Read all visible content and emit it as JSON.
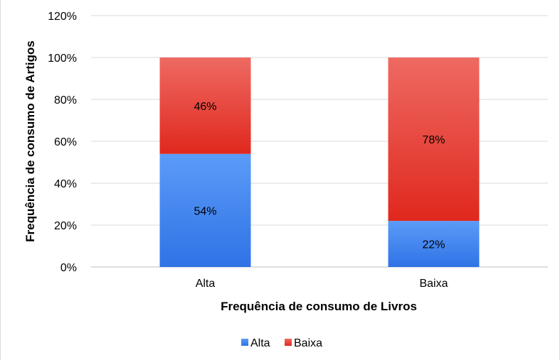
{
  "chart_data": {
    "type": "bar",
    "stacked": true,
    "title": "",
    "xlabel": "Frequência de consumo de Livros",
    "ylabel": "Frequência de consumo de Artigos",
    "categories": [
      "Alta",
      "Baixa"
    ],
    "series": [
      {
        "name": "Alta",
        "values": [
          54,
          22
        ],
        "labels": [
          "54%",
          "22%"
        ],
        "color_top": "#5b9bf8",
        "color_bottom": "#2f73e6"
      },
      {
        "name": "Baixa",
        "values": [
          46,
          78
        ],
        "labels": [
          "46%",
          "78%"
        ],
        "color_top": "#ee6a62",
        "color_bottom": "#e0281e"
      }
    ],
    "ylim": [
      0,
      120
    ],
    "yticks": [
      0,
      20,
      40,
      60,
      80,
      100,
      120
    ],
    "ytick_labels": [
      "0%",
      "20%",
      "40%",
      "60%",
      "80%",
      "100%",
      "120%"
    ],
    "grid": true,
    "legend_position": "bottom"
  }
}
